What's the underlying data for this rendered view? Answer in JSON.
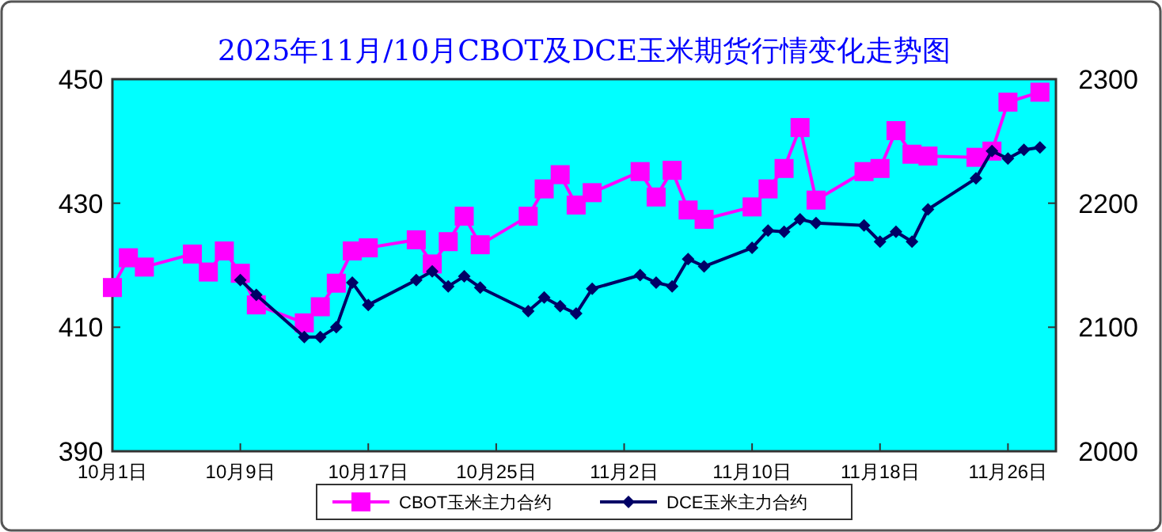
{
  "chart_data": {
    "type": "line",
    "title": "2025年11月/10月CBOT及DCE玉米期货行情变化走势图",
    "xlim": [
      "2025-10-01",
      "2025-11-29"
    ],
    "xticks": [
      {
        "value": "2025-10-01",
        "label": "10月1日"
      },
      {
        "value": "2025-10-09",
        "label": "10月9日"
      },
      {
        "value": "2025-10-17",
        "label": "10月17日"
      },
      {
        "value": "2025-10-25",
        "label": "10月25日"
      },
      {
        "value": "2025-11-02",
        "label": "11月2日"
      },
      {
        "value": "2025-11-10",
        "label": "11月10日"
      },
      {
        "value": "2025-11-18",
        "label": "11月18日"
      },
      {
        "value": "2025-11-26",
        "label": "11月26日"
      }
    ],
    "ylim": [
      390,
      450
    ],
    "yticks": [
      390,
      410,
      430,
      450
    ],
    "y2lim": [
      2000,
      2300
    ],
    "y2ticks": [
      2000,
      2100,
      2200,
      2300
    ],
    "legend": "bottom",
    "series": [
      {
        "name": "CBOT玉米主力合约",
        "color": "#ff00ff",
        "marker": "square",
        "x": [
          "2025-10-01",
          "2025-10-02",
          "2025-10-03",
          "2025-10-06",
          "2025-10-07",
          "2025-10-08",
          "2025-10-09",
          "2025-10-10",
          "2025-10-13",
          "2025-10-14",
          "2025-10-15",
          "2025-10-16",
          "2025-10-17",
          "2025-10-20",
          "2025-10-21",
          "2025-10-22",
          "2025-10-23",
          "2025-10-24",
          "2025-10-27",
          "2025-10-28",
          "2025-10-29",
          "2025-10-30",
          "2025-10-31",
          "2025-11-03",
          "2025-11-04",
          "2025-11-05",
          "2025-11-06",
          "2025-11-07",
          "2025-11-10",
          "2025-11-11",
          "2025-11-12",
          "2025-11-13",
          "2025-11-14",
          "2025-11-17",
          "2025-11-18",
          "2025-11-19",
          "2025-11-20",
          "2025-11-21",
          "2025-11-24",
          "2025-11-25",
          "2025-11-26",
          "2025-11-28"
        ],
        "values": [
          416.4,
          421.2,
          419.7,
          421.8,
          418.9,
          422.3,
          418.7,
          413.6,
          410.7,
          413.3,
          417.1,
          422.3,
          422.8,
          424.1,
          420.2,
          423.8,
          427.9,
          423.3,
          427.9,
          432.3,
          434.6,
          429.7,
          431.7,
          435.1,
          431.0,
          435.3,
          428.9,
          427.4,
          429.4,
          432.3,
          435.6,
          442.2,
          430.5,
          435.1,
          435.6,
          441.7,
          437.9,
          437.6,
          437.4,
          438.4,
          446.3,
          447.9
        ]
      },
      {
        "name": "DCE玉米主力合约",
        "color": "#000066",
        "marker": "diamond",
        "axis": "y2",
        "x": [
          "2025-10-09",
          "2025-10-10",
          "2025-10-13",
          "2025-10-14",
          "2025-10-15",
          "2025-10-16",
          "2025-10-17",
          "2025-10-20",
          "2025-10-21",
          "2025-10-22",
          "2025-10-23",
          "2025-10-24",
          "2025-10-27",
          "2025-10-28",
          "2025-10-29",
          "2025-10-30",
          "2025-10-31",
          "2025-11-03",
          "2025-11-04",
          "2025-11-05",
          "2025-11-06",
          "2025-11-07",
          "2025-11-10",
          "2025-11-11",
          "2025-11-12",
          "2025-11-13",
          "2025-11-14",
          "2025-11-17",
          "2025-11-18",
          "2025-11-19",
          "2025-11-20",
          "2025-11-21",
          "2025-11-24",
          "2025-11-25",
          "2025-11-26",
          "2025-11-27",
          "2025-11-28"
        ],
        "values": [
          2138,
          2126,
          2092,
          2092,
          2100,
          2136,
          2118,
          2138,
          2145,
          2133,
          2141,
          2132,
          2113,
          2124,
          2117,
          2111,
          2131,
          2142,
          2136,
          2133,
          2155,
          2149,
          2164,
          2178,
          2177,
          2187,
          2184,
          2182,
          2169,
          2177,
          2169,
          2195,
          2220,
          2242,
          2236,
          2243,
          2245
        ]
      }
    ]
  }
}
